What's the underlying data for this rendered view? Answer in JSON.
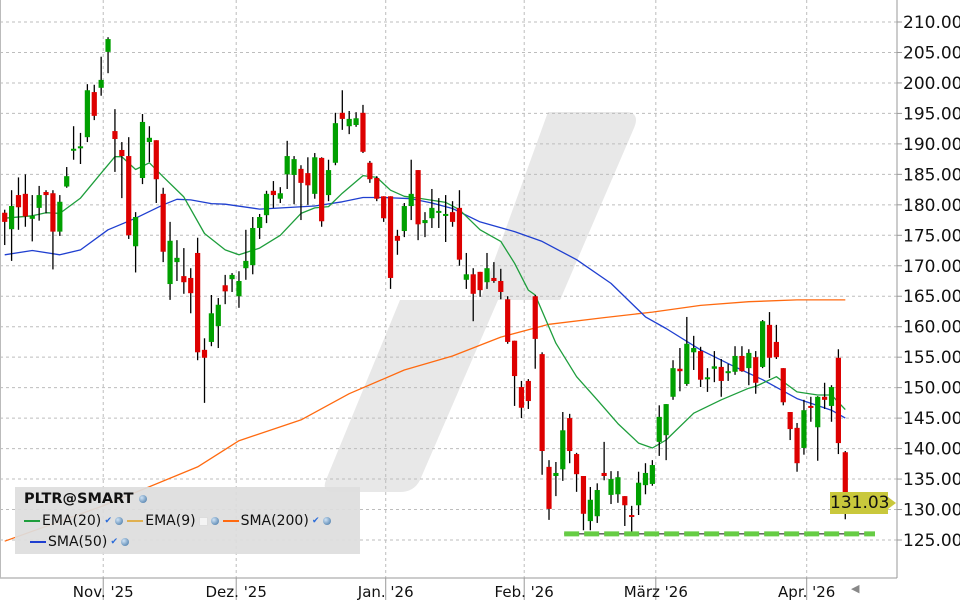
{
  "chart_data": {
    "type": "candlestick",
    "symbol": "PLTR@SMART",
    "ylim": [
      121,
      213
    ],
    "y_ticks": [
      "125.00",
      "130.00",
      "135.00",
      "140.00",
      "145.00",
      "150.00",
      "155.00",
      "160.00",
      "165.00",
      "170.00",
      "175.00",
      "180.00",
      "185.00",
      "190.00",
      "195.00",
      "200.00",
      "205.00",
      "210.00"
    ],
    "x_tick_labels": [
      "Nov. '25",
      "Dez. '25",
      "Jan. '26",
      "Feb. '26",
      "März '26",
      "Apr. '26"
    ],
    "grid": true,
    "last_price": "131.03",
    "support_level": 126,
    "colors": {
      "up": "#00a000",
      "down": "#dd0000",
      "ema20": "#1e9e3c",
      "ema9": "#e0b050",
      "sma200": "#ff6a10",
      "sma50": "#1f3fd0",
      "support": "#66cc44",
      "price_tag": "#c9c83c",
      "watermark": "#e8e8e8"
    },
    "ohlc_columns": [
      "open",
      "high",
      "low",
      "close"
    ],
    "candles": [
      [
        178.7,
        179.2,
        173.4,
        177.2
      ],
      [
        176.0,
        182.4,
        170.8,
        179.8
      ],
      [
        181.6,
        184.5,
        175.9,
        179.6
      ],
      [
        181.8,
        185.0,
        176.4,
        178.1
      ],
      [
        177.7,
        181.6,
        174.0,
        178.2
      ],
      [
        179.5,
        183.1,
        177.4,
        181.6
      ],
      [
        182.1,
        182.4,
        178.6,
        181.6
      ],
      [
        181.9,
        182.4,
        169.4,
        175.6
      ],
      [
        175.6,
        181.6,
        174.9,
        180.5
      ],
      [
        183.0,
        186.2,
        182.8,
        184.7
      ],
      [
        188.9,
        192.9,
        187.4,
        189.2
      ],
      [
        189.4,
        191.8,
        186.7,
        189.6
      ],
      [
        191.1,
        199.8,
        190.3,
        198.8
      ],
      [
        198.5,
        199.7,
        193.9,
        194.6
      ],
      [
        199.2,
        204.3,
        197.9,
        200.5
      ],
      [
        205.1,
        207.5,
        201.6,
        207.2
      ],
      [
        192.1,
        195.7,
        185.4,
        190.8
      ],
      [
        189.0,
        190.3,
        181.1,
        188.0
      ],
      [
        188.0,
        191.1,
        174.4,
        175.0
      ],
      [
        173.2,
        178.8,
        168.9,
        178.0
      ],
      [
        184.4,
        194.9,
        183.4,
        193.6
      ],
      [
        190.3,
        192.9,
        187.0,
        191.0
      ],
      [
        190.6,
        190.6,
        180.3,
        184.2
      ],
      [
        181.8,
        182.8,
        170.6,
        172.3
      ],
      [
        167.0,
        177.2,
        164.4,
        174.1
      ],
      [
        170.6,
        174.2,
        167.5,
        171.3
      ],
      [
        168.3,
        172.9,
        165.4,
        167.3
      ],
      [
        168.0,
        169.6,
        162.2,
        165.5
      ],
      [
        172.1,
        174.6,
        154.5,
        155.8
      ],
      [
        156.2,
        158.1,
        147.5,
        154.9
      ],
      [
        157.5,
        165.2,
        156.8,
        162.2
      ],
      [
        160.1,
        164.7,
        156.5,
        163.6
      ],
      [
        166.8,
        168.5,
        163.7,
        165.8
      ],
      [
        167.8,
        168.8,
        165.7,
        168.5
      ],
      [
        165.0,
        169.1,
        163.1,
        167.5
      ],
      [
        169.6,
        175.9,
        167.7,
        170.8
      ],
      [
        170.1,
        178.0,
        168.6,
        176.2
      ],
      [
        176.2,
        178.5,
        174.4,
        178.0
      ],
      [
        178.3,
        182.3,
        177.0,
        181.8
      ],
      [
        182.3,
        183.9,
        179.5,
        181.6
      ],
      [
        181.0,
        182.9,
        180.3,
        181.9
      ],
      [
        185.0,
        190.5,
        182.6,
        188.0
      ],
      [
        184.9,
        188.0,
        180.1,
        187.5
      ],
      [
        185.9,
        186.5,
        177.5,
        183.6
      ],
      [
        185.2,
        187.8,
        180.0,
        183.2
      ],
      [
        181.8,
        188.5,
        181.0,
        187.8
      ],
      [
        187.7,
        187.8,
        176.4,
        177.3
      ],
      [
        181.6,
        187.4,
        180.6,
        185.7
      ],
      [
        186.9,
        195.1,
        186.5,
        193.4
      ],
      [
        195.1,
        198.8,
        192.3,
        194.1
      ],
      [
        192.9,
        195.4,
        191.6,
        194.1
      ],
      [
        193.1,
        195.2,
        192.8,
        194.2
      ],
      [
        195.1,
        196.4,
        188.5,
        188.7
      ],
      [
        186.9,
        187.2,
        183.6,
        184.2
      ],
      [
        184.4,
        184.7,
        180.6,
        181.0
      ],
      [
        181.4,
        181.4,
        177.2,
        177.8
      ],
      [
        181.4,
        181.4,
        166.2,
        168.0
      ],
      [
        174.9,
        175.9,
        171.8,
        174.1
      ],
      [
        175.7,
        180.3,
        174.7,
        179.8
      ],
      [
        179.8,
        187.4,
        177.5,
        181.8
      ],
      [
        185.7,
        185.7,
        174.2,
        176.8
      ],
      [
        177.0,
        178.8,
        174.7,
        177.5
      ],
      [
        177.8,
        182.6,
        176.2,
        179.5
      ],
      [
        178.7,
        181.1,
        176.2,
        179.0
      ],
      [
        178.2,
        181.6,
        173.9,
        178.5
      ],
      [
        178.8,
        180.6,
        176.4,
        177.2
      ],
      [
        179.5,
        182.4,
        170.0,
        171.0
      ],
      [
        167.7,
        172.1,
        166.2,
        168.6
      ],
      [
        168.6,
        169.6,
        160.9,
        165.4
      ],
      [
        169.0,
        169.0,
        164.9,
        166.0
      ],
      [
        167.3,
        172.1,
        166.2,
        169.6
      ],
      [
        168.0,
        170.6,
        167.2,
        167.5
      ],
      [
        167.5,
        169.5,
        164.5,
        165.7
      ],
      [
        164.5,
        165.0,
        157.2,
        157.5
      ],
      [
        157.7,
        157.7,
        147.0,
        151.9
      ],
      [
        150.1,
        151.1,
        145.0,
        146.7
      ],
      [
        151.1,
        151.4,
        146.5,
        147.8
      ],
      [
        165.0,
        165.2,
        153.1,
        158.0
      ],
      [
        155.5,
        155.8,
        135.7,
        139.6
      ],
      [
        137.0,
        138.1,
        128.3,
        130.1
      ],
      [
        135.5,
        137.8,
        132.2,
        136.0
      ],
      [
        136.6,
        146.0,
        134.7,
        143.0
      ],
      [
        145.0,
        145.7,
        137.6,
        139.6
      ],
      [
        139.1,
        139.3,
        132.9,
        135.8
      ],
      [
        135.5,
        135.5,
        126.6,
        129.3
      ],
      [
        128.1,
        133.7,
        126.6,
        131.6
      ],
      [
        128.9,
        134.3,
        127.8,
        133.2
      ],
      [
        136.0,
        141.1,
        134.8,
        135.5
      ],
      [
        132.4,
        136.3,
        130.9,
        135.0
      ],
      [
        132.5,
        136.3,
        131.1,
        135.3
      ],
      [
        132.2,
        132.2,
        127.3,
        130.7
      ],
      [
        129.1,
        130.6,
        126.4,
        128.8
      ],
      [
        130.7,
        136.2,
        129.1,
        134.4
      ],
      [
        134.0,
        137.6,
        132.5,
        136.0
      ],
      [
        134.2,
        138.1,
        133.9,
        137.3
      ],
      [
        141.1,
        147.1,
        138.8,
        145.2
      ],
      [
        142.2,
        147.3,
        138.1,
        147.3
      ],
      [
        148.5,
        154.5,
        148.0,
        153.2
      ],
      [
        153.1,
        156.5,
        149.4,
        152.7
      ],
      [
        150.6,
        161.6,
        150.3,
        157.2
      ],
      [
        155.8,
        158.5,
        152.9,
        156.5
      ],
      [
        156.0,
        156.7,
        150.1,
        151.3
      ],
      [
        151.4,
        153.2,
        149.3,
        151.7
      ],
      [
        153.1,
        156.0,
        150.9,
        153.5
      ],
      [
        153.4,
        154.7,
        148.5,
        151.1
      ],
      [
        152.4,
        153.9,
        151.1,
        152.7
      ],
      [
        152.6,
        156.8,
        152.1,
        155.2
      ],
      [
        155.2,
        156.8,
        152.6,
        152.7
      ],
      [
        153.2,
        156.3,
        150.4,
        155.7
      ],
      [
        155.0,
        156.0,
        149.0,
        150.8
      ],
      [
        153.4,
        161.1,
        153.2,
        160.9
      ],
      [
        160.3,
        162.4,
        151.6,
        154.9
      ],
      [
        157.5,
        160.3,
        154.7,
        155.0
      ],
      [
        153.2,
        153.2,
        147.1,
        147.6
      ],
      [
        146.0,
        146.0,
        141.4,
        143.2
      ],
      [
        143.4,
        144.2,
        136.2,
        137.6
      ],
      [
        140.1,
        148.0,
        139.0,
        146.3
      ],
      [
        147.0,
        148.5,
        144.4,
        146.7
      ],
      [
        143.5,
        148.6,
        138.0,
        148.5
      ],
      [
        148.5,
        150.8,
        146.5,
        148.0
      ],
      [
        147.0,
        150.4,
        144.4,
        150.1
      ],
      [
        154.9,
        156.3,
        139.1,
        140.9
      ],
      [
        139.4,
        139.6,
        128.4,
        131.03
      ]
    ],
    "indicators": {
      "ema20": {
        "label": "EMA(20)",
        "checked": true,
        "points": [
          [
            0,
            177.8
          ],
          [
            4,
            178.2
          ],
          [
            6,
            178.7
          ],
          [
            8,
            178.6
          ],
          [
            11,
            181.1
          ],
          [
            14,
            185.2
          ],
          [
            16,
            187.9
          ],
          [
            17,
            187.9
          ],
          [
            19,
            185.8
          ],
          [
            21,
            186.9
          ],
          [
            23,
            184.6
          ],
          [
            26,
            181.3
          ],
          [
            29,
            175.3
          ],
          [
            32,
            172.6
          ],
          [
            34,
            171.8
          ],
          [
            37,
            172.9
          ],
          [
            40,
            175.0
          ],
          [
            43,
            178.6
          ],
          [
            45,
            179.5
          ],
          [
            47,
            179.7
          ],
          [
            49,
            181.9
          ],
          [
            52,
            184.8
          ],
          [
            54,
            184.5
          ],
          [
            56,
            182.4
          ],
          [
            58,
            181.4
          ],
          [
            60,
            181.1
          ],
          [
            64,
            180.4
          ],
          [
            66,
            179.2
          ],
          [
            69,
            175.9
          ],
          [
            72,
            174.0
          ],
          [
            74,
            170.4
          ],
          [
            76,
            166.0
          ],
          [
            77,
            165.2
          ],
          [
            80,
            157.3
          ],
          [
            83,
            151.8
          ],
          [
            86,
            148.0
          ],
          [
            89,
            144.1
          ],
          [
            92,
            140.9
          ],
          [
            94,
            140.1
          ],
          [
            96,
            141.4
          ],
          [
            100,
            145.8
          ],
          [
            104,
            148.0
          ],
          [
            108,
            149.9
          ],
          [
            109,
            150.2
          ],
          [
            112,
            151.8
          ],
          [
            115,
            149.3
          ],
          [
            118,
            148.8
          ],
          [
            120,
            148.8
          ],
          [
            122,
            146.4
          ]
        ]
      },
      "ema9": {
        "label": "EMA(9)",
        "checked": false
      },
      "sma200": {
        "label": "SMA(200)",
        "checked": true,
        "points": [
          [
            0,
            124.8
          ],
          [
            14,
            130.5
          ],
          [
            28,
            137.0
          ],
          [
            34,
            141.3
          ],
          [
            43,
            144.7
          ],
          [
            50,
            149.0
          ],
          [
            58,
            152.9
          ],
          [
            65,
            155.2
          ],
          [
            72,
            158.3
          ],
          [
            79,
            160.4
          ],
          [
            87,
            161.5
          ],
          [
            94,
            162.4
          ],
          [
            101,
            163.5
          ],
          [
            108,
            164.1
          ],
          [
            115,
            164.4
          ],
          [
            122,
            164.4
          ]
        ]
      },
      "sma50": {
        "label": "SMA(50)",
        "checked": true,
        "points": [
          [
            0,
            171.8
          ],
          [
            4,
            172.5
          ],
          [
            8,
            171.8
          ],
          [
            11,
            172.6
          ],
          [
            15,
            175.9
          ],
          [
            19,
            177.8
          ],
          [
            23,
            180.0
          ],
          [
            25,
            180.9
          ],
          [
            27,
            180.8
          ],
          [
            30,
            180.2
          ],
          [
            32,
            180.1
          ],
          [
            37,
            179.3
          ],
          [
            45,
            179.8
          ],
          [
            49,
            180.5
          ],
          [
            52,
            181.2
          ],
          [
            55,
            181.2
          ],
          [
            59,
            181.0
          ],
          [
            62,
            180.3
          ],
          [
            65,
            179.4
          ],
          [
            69,
            177.2
          ],
          [
            74,
            175.6
          ],
          [
            78,
            174.0
          ],
          [
            83,
            171.0
          ],
          [
            88,
            167.1
          ],
          [
            93,
            161.6
          ],
          [
            96,
            159.7
          ],
          [
            101,
            156.2
          ],
          [
            106,
            153.4
          ],
          [
            110,
            151.3
          ],
          [
            115,
            148.2
          ],
          [
            120,
            146.3
          ],
          [
            122,
            145.0
          ]
        ]
      }
    }
  }
}
